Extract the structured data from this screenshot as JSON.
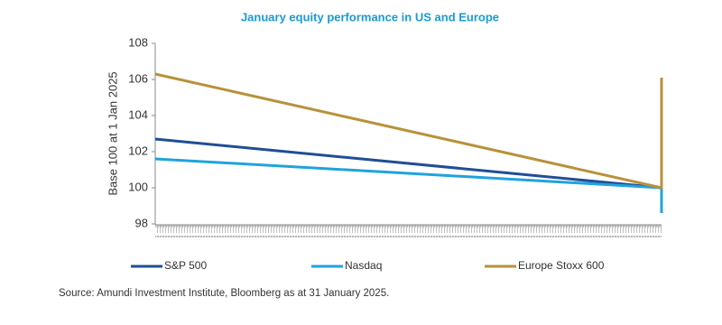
{
  "chart_data": {
    "type": "line",
    "title": "January equity performance in US and Europe",
    "y_label": "Base 100 at 1 Jan 2025",
    "source": "Source: Amundi Investment Institute, Bloomberg as at 31 January 2025.",
    "x": [
      0,
      1,
      1
    ],
    "xlim": [
      0,
      1
    ],
    "ylim": [
      98,
      108
    ],
    "yticks": [
      98,
      100,
      102,
      104,
      106,
      108
    ],
    "grid": false,
    "legend": "bottom",
    "series": [
      {
        "name": "S&P 500",
        "color": "#1f4e96",
        "values": [
          102.7,
          100,
          100
        ]
      },
      {
        "name": "Nasdaq",
        "color": "#1fa3dc",
        "values": [
          101.6,
          100,
          98.6
        ]
      },
      {
        "name": "Europe Stoxx 600",
        "color": "#b8923a",
        "values": [
          106.3,
          100,
          106.1
        ]
      }
    ]
  }
}
